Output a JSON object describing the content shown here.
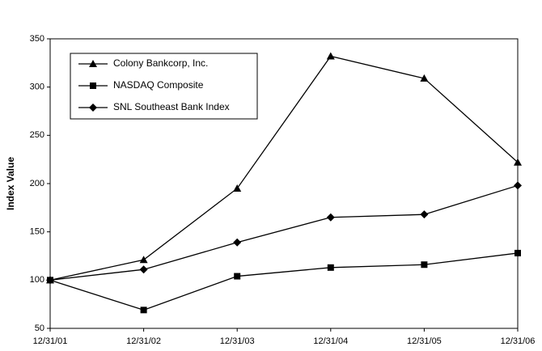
{
  "chart_data": {
    "type": "line",
    "y_label": "Index Value",
    "categories": [
      "12/31/01",
      "12/31/02",
      "12/31/03",
      "12/31/04",
      "12/31/05",
      "12/31/06"
    ],
    "series": [
      {
        "name": "Colony Bankcorp, Inc.",
        "color": "#000000",
        "marker": "triangle",
        "values": [
          100,
          121,
          195,
          332,
          309,
          222
        ]
      },
      {
        "name": "NASDAQ Composite",
        "color": "#000000",
        "marker": "square",
        "values": [
          100,
          69,
          104,
          113,
          116,
          128
        ]
      },
      {
        "name": "SNL Southeast Bank Index",
        "color": "#000000",
        "marker": "diamond",
        "values": [
          100,
          111,
          139,
          165,
          168,
          198
        ]
      }
    ],
    "ylim": [
      50,
      350
    ],
    "yticks": [
      50,
      100,
      150,
      200,
      250,
      300,
      350
    ],
    "grid": false,
    "legend": "upper left"
  }
}
